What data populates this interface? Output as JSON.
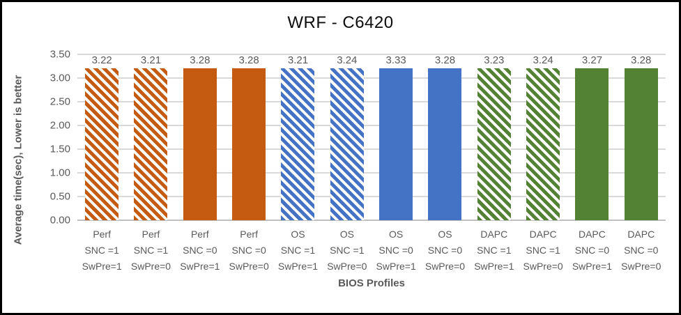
{
  "chart_data": {
    "type": "bar",
    "title": "WRF - C6420",
    "xlabel": "BIOS Profiles",
    "ylabel": "Average time(sec), Lower is better",
    "ylim": [
      0,
      3.5
    ],
    "ytick_step": 0.5,
    "yticks": [
      "0.00",
      "0.50",
      "1.00",
      "1.50",
      "2.00",
      "2.50",
      "3.00",
      "3.50"
    ],
    "grid": true,
    "legend_position": "none",
    "gridline_color": "#d9d9d9",
    "text_color": "#595959",
    "group_colors": {
      "Perf": "#c55a11",
      "OS": "#4472c4",
      "DAPC": "#548235"
    },
    "bars": [
      {
        "value": 3.22,
        "label": "3.22",
        "category": [
          "Perf",
          "SNC =1",
          "SwPre=1"
        ],
        "color": "#c55a11",
        "pattern": "hatch"
      },
      {
        "value": 3.21,
        "label": "3.21",
        "category": [
          "Perf",
          "SNC =1",
          "SwPre=0"
        ],
        "color": "#c55a11",
        "pattern": "hatch"
      },
      {
        "value": 3.28,
        "label": "3.28",
        "category": [
          "Perf",
          "SNC =0",
          "SwPre=1"
        ],
        "color": "#c55a11",
        "pattern": "solid"
      },
      {
        "value": 3.28,
        "label": "3.28",
        "category": [
          "Perf",
          "SNC =0",
          "SwPre=0"
        ],
        "color": "#c55a11",
        "pattern": "solid"
      },
      {
        "value": 3.21,
        "label": "3.21",
        "category": [
          "OS",
          "SNC =1",
          "SwPre=1"
        ],
        "color": "#4472c4",
        "pattern": "hatch"
      },
      {
        "value": 3.24,
        "label": "3.24",
        "category": [
          "OS",
          "SNC =1",
          "SwPre=0"
        ],
        "color": "#4472c4",
        "pattern": "hatch"
      },
      {
        "value": 3.33,
        "label": "3.33",
        "category": [
          "OS",
          "SNC =0",
          "SwPre=1"
        ],
        "color": "#4472c4",
        "pattern": "solid"
      },
      {
        "value": 3.28,
        "label": "3.28",
        "category": [
          "OS",
          "SNC =0",
          "SwPre=0"
        ],
        "color": "#4472c4",
        "pattern": "solid"
      },
      {
        "value": 3.23,
        "label": "3.23",
        "category": [
          "DAPC",
          "SNC =1",
          "SwPre=1"
        ],
        "color": "#548235",
        "pattern": "hatch"
      },
      {
        "value": 3.24,
        "label": "3.24",
        "category": [
          "DAPC",
          "SNC =1",
          "SwPre=0"
        ],
        "color": "#548235",
        "pattern": "hatch"
      },
      {
        "value": 3.27,
        "label": "3.27",
        "category": [
          "DAPC",
          "SNC =0",
          "SwPre=1"
        ],
        "color": "#548235",
        "pattern": "hatch-solid"
      },
      {
        "value": 3.28,
        "label": "3.28",
        "category": [
          "DAPC",
          "SNC =0",
          "SwPre=0"
        ],
        "color": "#548235",
        "pattern": "solid"
      }
    ]
  }
}
